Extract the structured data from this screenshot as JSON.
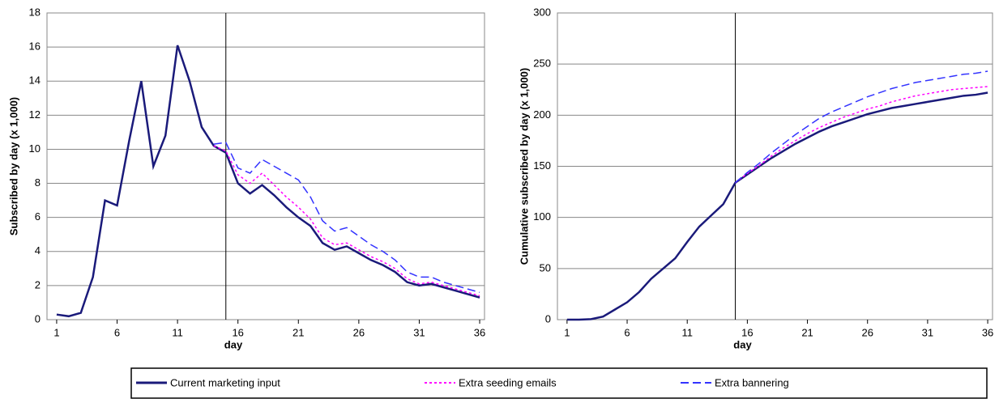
{
  "chart_data": [
    {
      "type": "line",
      "ylabel": "Subscribed by day (x 1,000)",
      "xlabel": "day",
      "x": [
        1,
        2,
        3,
        4,
        5,
        6,
        7,
        8,
        9,
        10,
        11,
        12,
        13,
        14,
        15,
        16,
        17,
        18,
        19,
        20,
        21,
        22,
        23,
        24,
        25,
        26,
        27,
        28,
        29,
        30,
        31,
        32,
        33,
        34,
        35,
        36
      ],
      "xlim": [
        0.2,
        36.4
      ],
      "xticks": [
        1,
        6,
        11,
        16,
        21,
        26,
        31,
        36
      ],
      "ylim": [
        0,
        18
      ],
      "yticks": [
        0,
        2,
        4,
        6,
        8,
        10,
        12,
        14,
        16,
        18
      ],
      "grid": true,
      "vline": 15,
      "series": [
        {
          "name": "Current marketing input",
          "color": "#1a1a7a",
          "style": "solid",
          "values": [
            0.3,
            0.2,
            0.4,
            2.5,
            7.0,
            6.7,
            10.5,
            14.0,
            9.0,
            10.8,
            16.1,
            14.0,
            11.3,
            10.2,
            9.8,
            8.0,
            7.4,
            7.9,
            7.3,
            6.6,
            6.0,
            5.5,
            4.5,
            4.1,
            4.3,
            3.9,
            3.5,
            3.2,
            2.8,
            2.2,
            2.0,
            2.1,
            1.9,
            1.7,
            1.5,
            1.3
          ]
        },
        {
          "name": "Extra seeding emails",
          "color": "#ff00ff",
          "style": "dotted",
          "values": [
            null,
            null,
            null,
            null,
            null,
            null,
            null,
            null,
            null,
            null,
            null,
            null,
            null,
            10.2,
            9.9,
            8.5,
            8.0,
            8.6,
            7.9,
            7.2,
            6.6,
            5.9,
            4.8,
            4.4,
            4.5,
            4.1,
            3.7,
            3.4,
            3.0,
            2.4,
            2.1,
            2.2,
            2.0,
            1.8,
            1.6,
            1.4
          ]
        },
        {
          "name": "Extra bannering",
          "color": "#3333ff",
          "style": "dashed",
          "values": [
            null,
            null,
            null,
            null,
            null,
            null,
            null,
            null,
            null,
            null,
            null,
            null,
            null,
            10.3,
            10.4,
            8.9,
            8.6,
            9.4,
            9.0,
            8.6,
            8.2,
            7.2,
            5.8,
            5.2,
            5.4,
            4.9,
            4.4,
            4.0,
            3.5,
            2.8,
            2.5,
            2.5,
            2.2,
            2.0,
            1.8,
            1.6
          ]
        }
      ]
    },
    {
      "type": "line",
      "ylabel": "Cumulative subscribed by day (x 1,000)",
      "xlabel": "day",
      "x": [
        1,
        2,
        3,
        4,
        5,
        6,
        7,
        8,
        9,
        10,
        11,
        12,
        13,
        14,
        15,
        16,
        17,
        18,
        19,
        20,
        21,
        22,
        23,
        24,
        25,
        26,
        27,
        28,
        29,
        30,
        31,
        32,
        33,
        34,
        35,
        36
      ],
      "xlim": [
        0.2,
        36.4
      ],
      "xticks": [
        1,
        6,
        11,
        16,
        21,
        26,
        31,
        36
      ],
      "ylim": [
        0,
        300
      ],
      "yticks": [
        0,
        50,
        100,
        150,
        200,
        250,
        300
      ],
      "grid": true,
      "vline": 15,
      "series": [
        {
          "name": "Current marketing input",
          "color": "#1a1a7a",
          "style": "solid",
          "values": [
            0,
            0,
            0.5,
            3,
            10,
            17,
            27,
            40,
            50,
            60,
            76,
            91,
            102,
            113,
            134,
            142,
            150,
            158,
            165,
            172,
            178,
            184,
            189,
            193,
            197,
            201,
            204,
            207,
            209,
            211,
            213,
            215,
            217,
            219,
            220,
            222
          ]
        },
        {
          "name": "Extra seeding emails",
          "color": "#ff00ff",
          "style": "dotted",
          "values": [
            null,
            null,
            null,
            null,
            null,
            null,
            null,
            null,
            null,
            null,
            null,
            null,
            null,
            null,
            134,
            143,
            151,
            160,
            168,
            175,
            182,
            188,
            193,
            198,
            202,
            206,
            209,
            213,
            216,
            219,
            221,
            223,
            225,
            226,
            227,
            228
          ]
        },
        {
          "name": "Extra bannering",
          "color": "#3333ff",
          "style": "dashed",
          "values": [
            null,
            null,
            null,
            null,
            null,
            null,
            null,
            null,
            null,
            null,
            null,
            null,
            null,
            null,
            134,
            144,
            153,
            163,
            172,
            181,
            189,
            197,
            203,
            208,
            213,
            218,
            222,
            226,
            229,
            232,
            234,
            236,
            238,
            240,
            241,
            243
          ]
        }
      ]
    }
  ]
}
